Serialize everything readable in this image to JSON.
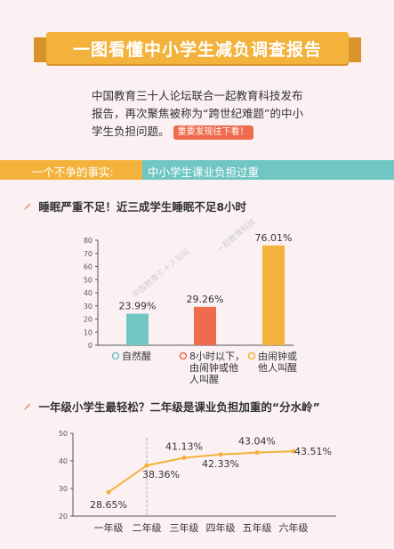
{
  "header": {
    "title": "一图看懂中小学生减负调查报告"
  },
  "intro": {
    "text": "中国教育三十人论坛联合一起教育科技发布报告，再次聚焦被称为“跨世纪难题”的中小学生负担问题。",
    "button": "重要发现往下看！"
  },
  "fact": {
    "left": "一个不争的事实:",
    "right": "中小学生课业负担过重"
  },
  "watermarks": [
    "中国教育三十人论坛",
    "一起教育科技"
  ],
  "colors": {
    "orange": "#f2b23b",
    "teal": "#6fc6c3",
    "red": "#ee6b4d"
  },
  "chart_data": [
    {
      "type": "bar",
      "title": "睡眠严重不足！近三成学生睡眠不足8小时",
      "categories": [
        "自然醒",
        "8小时以下，由闹钟或他人叫醒",
        "由闹钟或他人叫醒"
      ],
      "category_lines": [
        [
          "自然醒"
        ],
        [
          "8小时以下，",
          "由闹钟或他",
          "人叫醒"
        ],
        [
          "由闹钟或",
          "他人叫醒"
        ]
      ],
      "values": [
        23.99,
        29.26,
        76.01
      ],
      "value_labels": [
        "23.99%",
        "29.26%",
        "76.01%"
      ],
      "colors": [
        "#6fc6c3",
        "#ee6b4d",
        "#f2b23b"
      ],
      "ylim": [
        0,
        80
      ],
      "yticks": [
        0,
        10,
        20,
        30,
        40,
        50,
        60,
        70,
        80
      ],
      "legend": "below"
    },
    {
      "type": "line",
      "title": "一年级小学生最轻松？二年级是课业负担加重的“分水岭”",
      "categories": [
        "一年级",
        "二年级",
        "三年级",
        "四年级",
        "五年级",
        "六年级"
      ],
      "values": [
        28.65,
        38.36,
        41.13,
        42.33,
        43.04,
        43.51
      ],
      "value_labels": [
        "28.65%",
        "38.36%",
        "41.13%",
        "42.33%",
        "43.04%",
        "43.51%"
      ],
      "color": "#f2b23b",
      "ylim": [
        20,
        50
      ],
      "yticks": [
        20,
        30,
        40,
        50
      ],
      "grid": false
    }
  ]
}
